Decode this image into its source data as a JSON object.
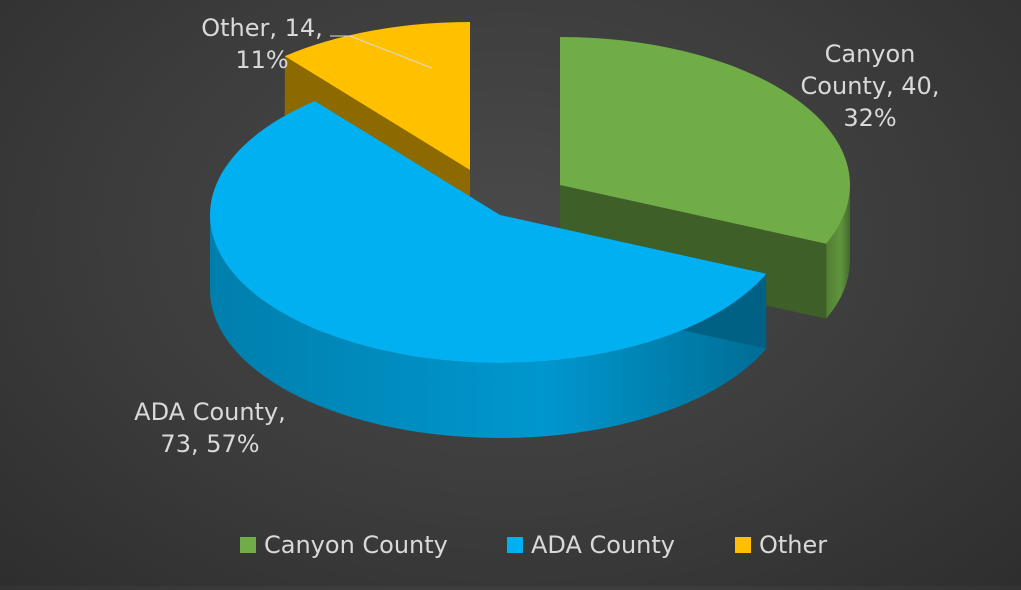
{
  "chart_data": {
    "type": "pie",
    "title": "",
    "series": [
      {
        "name": "Canyon County",
        "value": 40,
        "percent": "32%",
        "color": "#70ad47",
        "label_lines": [
          "Canyon",
          "County, 40,",
          "32%"
        ]
      },
      {
        "name": "ADA County",
        "value": 73,
        "percent": "57%",
        "color": "#00b0f0",
        "label_lines": [
          "ADA County,",
          "73, 57%"
        ]
      },
      {
        "name": "Other",
        "value": 14,
        "percent": "11%",
        "color": "#ffc000",
        "label_lines": [
          "Other, 14,",
          "11%"
        ]
      }
    ],
    "legend_position": "bottom",
    "style": "3d-exploded"
  }
}
